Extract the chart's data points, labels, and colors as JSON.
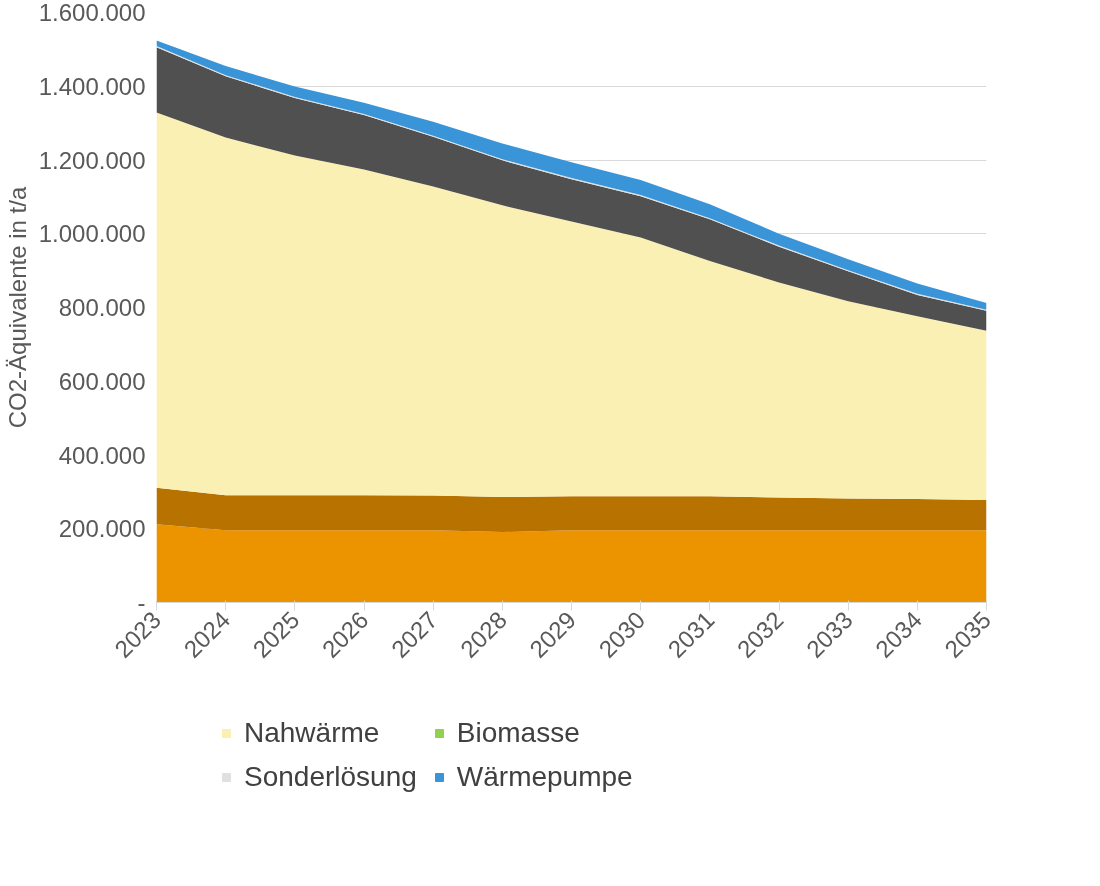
{
  "chart_data": {
    "type": "area",
    "stacked": true,
    "ylabel": "CO2-Äquivalente in t/a",
    "categories": [
      "2023",
      "2024",
      "2025",
      "2026",
      "2027",
      "2028",
      "2029",
      "2030",
      "2031",
      "2032",
      "2033",
      "2034",
      "2035"
    ],
    "ylim": [
      0,
      1600000
    ],
    "yticks": [
      {
        "value": 0,
        "label": "-"
      },
      {
        "value": 200000,
        "label": "200.000"
      },
      {
        "value": 400000,
        "label": "400.000"
      },
      {
        "value": 600000,
        "label": "600.000"
      },
      {
        "value": 800000,
        "label": "800.000"
      },
      {
        "value": 1000000,
        "label": "1.000.000"
      },
      {
        "value": 1200000,
        "label": "1.200.000"
      },
      {
        "value": 1400000,
        "label": "1.400.000"
      },
      {
        "value": 1600000,
        "label": "1.600.000"
      }
    ],
    "grid": "y",
    "legend": "bottom",
    "series": [
      {
        "color": "#ec9300",
        "values": [
          212000,
          196000,
          196000,
          196000,
          196000,
          191000,
          196000,
          196000,
          196000,
          196000,
          196000,
          196000,
          196000
        ]
      },
      {
        "color": "#b87200",
        "values": [
          99000,
          95000,
          95000,
          95000,
          94000,
          95000,
          92000,
          92000,
          92000,
          89000,
          86000,
          85000,
          82000
        ]
      },
      {
        "name": "Nahwärme",
        "color": "#fbf0b4",
        "values": [
          1018000,
          970000,
          921000,
          883000,
          838000,
          791000,
          745000,
          702000,
          638000,
          583000,
          535000,
          495000,
          459000
        ]
      },
      {
        "color": "#505050",
        "values": [
          177000,
          166000,
          156000,
          148000,
          135000,
          122000,
          115000,
          112000,
          113000,
          97000,
          81000,
          58000,
          54000
        ]
      },
      {
        "name": "Biomasse",
        "color": "#92d050",
        "values": [
          null,
          null,
          null,
          null,
          null,
          null,
          null,
          null,
          null,
          null,
          null,
          null,
          null
        ]
      },
      {
        "name": "Sonderlösung",
        "color": "#e0e0e0",
        "values": [
          3000,
          3000,
          3000,
          3000,
          3000,
          3000,
          3000,
          3000,
          3000,
          3000,
          3000,
          3000,
          3000
        ]
      },
      {
        "name": "Wärmepumpe",
        "color": "#3a95d8",
        "values": [
          15000,
          25000,
          28000,
          30000,
          38000,
          43000,
          43000,
          41000,
          38000,
          32000,
          30000,
          28000,
          18000
        ]
      }
    ]
  }
}
